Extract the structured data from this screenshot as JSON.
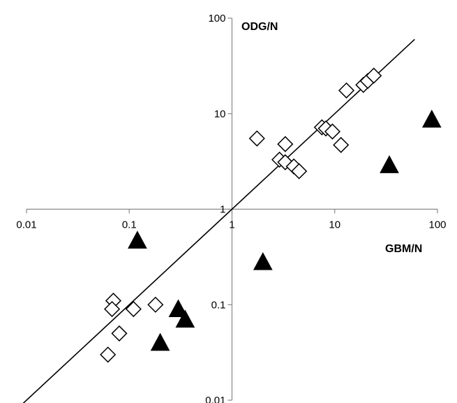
{
  "chart_data": {
    "type": "scatter",
    "xscale": "log",
    "yscale": "log",
    "xlim": [
      0.01,
      100
    ],
    "ylim": [
      0.01,
      100
    ],
    "xlabel": "GBM/N",
    "ylabel": "ODG/N",
    "x_ticks": [
      {
        "value": 0.01,
        "label": "0.01"
      },
      {
        "value": 0.1,
        "label": "0.1"
      },
      {
        "value": 1,
        "label": "1"
      },
      {
        "value": 10,
        "label": "10"
      },
      {
        "value": 100,
        "label": "100"
      }
    ],
    "y_ticks": [
      {
        "value": 100,
        "label": "100"
      },
      {
        "value": 10,
        "label": "10"
      },
      {
        "value": 1,
        "label": "1"
      },
      {
        "value": 0.1,
        "label": "0.1"
      },
      {
        "value": 0.01,
        "label": "0.01"
      }
    ],
    "grid": false,
    "legend": "none",
    "reference_line": {
      "type": "y=x",
      "x_range": [
        0.008,
        60
      ]
    },
    "series": [
      {
        "marker": "open-diamond",
        "color": "#000000",
        "points": [
          {
            "x": 0.07,
            "y": 0.11
          },
          {
            "x": 0.068,
            "y": 0.09
          },
          {
            "x": 0.11,
            "y": 0.09
          },
          {
            "x": 0.18,
            "y": 0.1
          },
          {
            "x": 0.08,
            "y": 0.05
          },
          {
            "x": 0.062,
            "y": 0.03
          },
          {
            "x": 1.75,
            "y": 5.5
          },
          {
            "x": 3.3,
            "y": 4.8
          },
          {
            "x": 2.9,
            "y": 3.3
          },
          {
            "x": 3.3,
            "y": 3.1
          },
          {
            "x": 4.0,
            "y": 2.8
          },
          {
            "x": 4.5,
            "y": 2.5
          },
          {
            "x": 7.5,
            "y": 7.2
          },
          {
            "x": 8.2,
            "y": 7.0
          },
          {
            "x": 9.5,
            "y": 6.5
          },
          {
            "x": 11.5,
            "y": 4.7
          },
          {
            "x": 13,
            "y": 17.5
          },
          {
            "x": 19,
            "y": 20
          },
          {
            "x": 21,
            "y": 22
          },
          {
            "x": 24,
            "y": 25
          }
        ]
      },
      {
        "marker": "filled-triangle",
        "color": "#000000",
        "points": [
          {
            "x": 0.12,
            "y": 0.47
          },
          {
            "x": 0.2,
            "y": 0.04
          },
          {
            "x": 0.3,
            "y": 0.09
          },
          {
            "x": 0.35,
            "y": 0.07
          },
          {
            "x": 2.0,
            "y": 0.28
          },
          {
            "x": 34,
            "y": 2.9
          },
          {
            "x": 88,
            "y": 8.7
          }
        ]
      }
    ]
  }
}
